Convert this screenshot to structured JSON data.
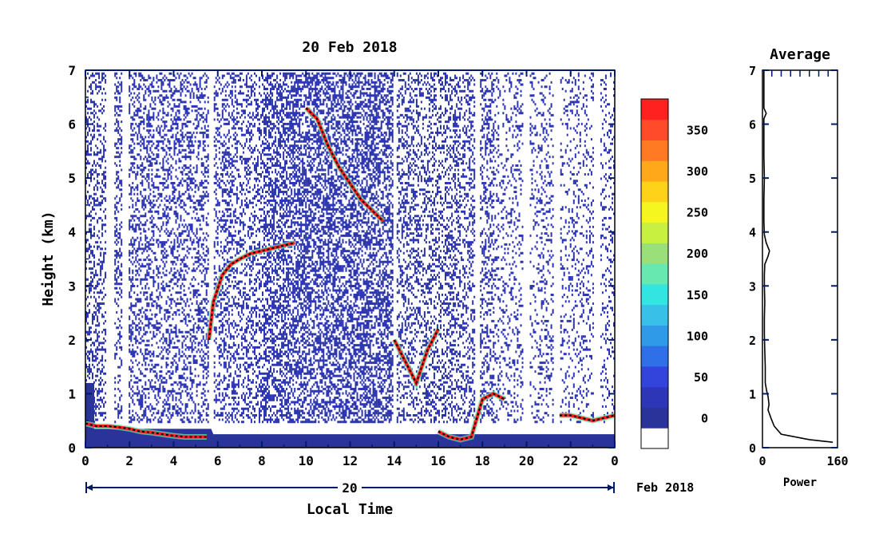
{
  "chart_data": [
    {
      "type": "heatmap",
      "title": "20 Feb 2018",
      "ylabel": "Height (km)",
      "xlabel": "Local Time",
      "date_label": "20",
      "date_suffix": "Feb 2018",
      "xlim": [
        0,
        24
      ],
      "ylim": [
        0,
        7
      ],
      "x_ticks": [
        "0",
        "2",
        "4",
        "6",
        "8",
        "10",
        "12",
        "14",
        "16",
        "18",
        "20",
        "22",
        "0"
      ],
      "y_ticks": [
        "0",
        "1",
        "2",
        "3",
        "4",
        "5",
        "6",
        "7"
      ],
      "colorbar": {
        "ticks": [
          "0",
          "50",
          "100",
          "150",
          "200",
          "250",
          "300",
          "350"
        ],
        "vmin": 0,
        "vmax": 375,
        "colors": [
          "#ffffff",
          "#2a3399",
          "#2e36b8",
          "#3344dd",
          "#2f6fe8",
          "#2f9ae8",
          "#38c0e8",
          "#33e5e0",
          "#66e8b0",
          "#99e07a",
          "#c8f040",
          "#f5f520",
          "#ffd21a",
          "#ffa81a",
          "#ff7a22",
          "#ff4b2a",
          "#ff2020"
        ]
      },
      "layers": [
        {
          "name": "surface",
          "x": [
            0,
            5.7,
            5.8,
            24
          ],
          "top": [
            0.35,
            0.35,
            0.25,
            0.25
          ]
        },
        {
          "name": "layer-a",
          "x": [
            0,
            0.5,
            1,
            1.5,
            2,
            2.5,
            3,
            3.5,
            4,
            4.5,
            5,
            5.5
          ],
          "y": [
            0.45,
            0.4,
            0.4,
            0.38,
            0.35,
            0.3,
            0.28,
            0.25,
            0.22,
            0.2,
            0.2,
            0.2
          ]
        },
        {
          "name": "layer-b",
          "x": [
            5.6,
            5.8,
            6.2,
            6.6,
            7,
            7.5,
            8,
            8.5,
            9,
            9.5
          ],
          "y": [
            2.0,
            2.7,
            3.2,
            3.4,
            3.5,
            3.6,
            3.65,
            3.7,
            3.75,
            3.8
          ]
        },
        {
          "name": "layer-c",
          "x": [
            10,
            10.5,
            11,
            11.5,
            12,
            12.5,
            13,
            13.5
          ],
          "y": [
            6.3,
            6.1,
            5.6,
            5.2,
            4.9,
            4.6,
            4.4,
            4.2
          ]
        },
        {
          "name": "layer-d",
          "x": [
            14,
            14.5,
            15,
            15.5,
            16
          ],
          "y": [
            2.0,
            1.6,
            1.2,
            1.8,
            2.2
          ]
        },
        {
          "name": "layer-e",
          "x": [
            16,
            16.5,
            17,
            17.5,
            18,
            18.5,
            19
          ],
          "y": [
            0.3,
            0.2,
            0.15,
            0.2,
            0.9,
            1.0,
            0.9
          ]
        },
        {
          "name": "layer-f",
          "x": [
            21.5,
            22,
            22.5,
            23,
            23.5,
            24
          ],
          "y": [
            0.6,
            0.6,
            0.55,
            0.5,
            0.55,
            0.6
          ]
        }
      ]
    },
    {
      "type": "line",
      "title": "Average",
      "xlabel": "Power",
      "xlim": [
        0,
        160
      ],
      "ylim": [
        0,
        7
      ],
      "x_ticks": [
        "0",
        "160"
      ],
      "y_ticks": [
        "0",
        "1",
        "2",
        "3",
        "4",
        "5",
        "6",
        "7"
      ],
      "series": [
        {
          "x": [
            150,
            100,
            40,
            25,
            18,
            12,
            14,
            12,
            9,
            6,
            6,
            5,
            4,
            4,
            5,
            4,
            4,
            5,
            12,
            15,
            8,
            4,
            3,
            3,
            4,
            3,
            3,
            3,
            8,
            3,
            3
          ],
          "y": [
            0.1,
            0.15,
            0.25,
            0.4,
            0.55,
            0.7,
            0.8,
            0.95,
            1.05,
            1.2,
            1.5,
            1.8,
            2.1,
            2.4,
            2.7,
            3.0,
            3.2,
            3.4,
            3.55,
            3.65,
            3.8,
            3.95,
            4.2,
            4.6,
            5.0,
            5.4,
            5.8,
            6.1,
            6.2,
            6.3,
            7.0
          ]
        }
      ]
    }
  ]
}
